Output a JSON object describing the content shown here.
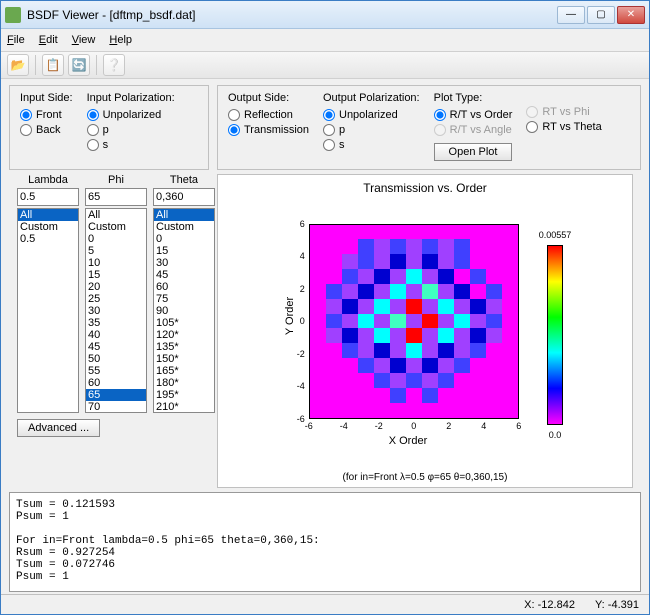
{
  "window": {
    "title": "BSDF Viewer - [dftmp_bsdf.dat]"
  },
  "menu": {
    "file": "File",
    "edit": "Edit",
    "view": "View",
    "help": "Help"
  },
  "input_side": {
    "label": "Input Side:",
    "front": "Front",
    "back": "Back",
    "selected": "front"
  },
  "input_pol": {
    "label": "Input Polarization:",
    "un": "Unpolarized",
    "p": "p",
    "s": "s",
    "selected": "un"
  },
  "output_side": {
    "label": "Output Side:",
    "refl": "Reflection",
    "trans": "Transmission",
    "selected": "trans"
  },
  "output_pol": {
    "label": "Output Polarization:",
    "un": "Unpolarized",
    "p": "p",
    "s": "s",
    "selected": "un"
  },
  "plot_type": {
    "label": "Plot Type:",
    "a": "R/T vs Order",
    "b": "R/T vs Angle",
    "c": "RT vs Phi",
    "d": "RT vs Theta",
    "selected": "a"
  },
  "open_plot": "Open Plot",
  "lambda": {
    "hdr": "Lambda",
    "val": "0.5",
    "opts": [
      "All",
      "Custom",
      "0.5"
    ],
    "sel": "All"
  },
  "phi": {
    "hdr": "Phi",
    "val": "65",
    "opts": [
      "All",
      "Custom",
      "0",
      "5",
      "10",
      "15",
      "20",
      "25",
      "30",
      "35",
      "40",
      "45",
      "50",
      "55",
      "60",
      "65",
      "70"
    ],
    "sel": "65"
  },
  "theta": {
    "hdr": "Theta",
    "val": "0,360",
    "opts": [
      "All",
      "Custom",
      "0",
      "15",
      "30",
      "45",
      "60",
      "75",
      "90",
      "105*",
      "120*",
      "135*",
      "150*",
      "165*",
      "180*",
      "195*",
      "210*"
    ],
    "sel": "All"
  },
  "advanced": "Advanced ...",
  "plot": {
    "title": "Transmission vs. Order",
    "xlabel": "X Order",
    "ylabel": "Y Order",
    "subtitle": "(for in=Front λ=0.5 φ=65 θ=0,360,15)",
    "ticks": [
      -6,
      -4,
      -2,
      0,
      2,
      4,
      6
    ],
    "cmax": "0.00557",
    "cmin": "0.0",
    "colors": {
      "bg": "#ff00ff",
      "a": "#ff00ff",
      "b": "#a040ff",
      "c": "#4040ff",
      "d": "#0000d0",
      "e": "#00ffff",
      "f": "#40ffc0",
      "g": "#ff0000",
      "h": "#ff8000"
    },
    "grid": [
      "aaaaaaaaaaaaa",
      "aaacbcbcbcaaa",
      "aabcbdbdbcaaa",
      "aacbdbebdacaa",
      "acbdbebfbdacaa",
      "abdbebgbebdbaa",
      "acbebfbgbebcaa",
      "abdbebgbebdbaa",
      "aacbdbebdbcaa",
      "aaacbdbdbcaaa",
      "aaaacbcbcaaaa",
      "aaaaacacaaaaa",
      "aaaaaaaaaaaaa"
    ]
  },
  "console": "Tsum = 0.121593\nPsum = 1\n\nFor in=Front lambda=0.5 phi=65 theta=0,360,15:\nRsum = 0.927254\nTsum = 0.072746\nPsum = 1",
  "status": {
    "x_lbl": "X:",
    "x": "-12.842",
    "y_lbl": "Y:",
    "y": "-4.391"
  }
}
